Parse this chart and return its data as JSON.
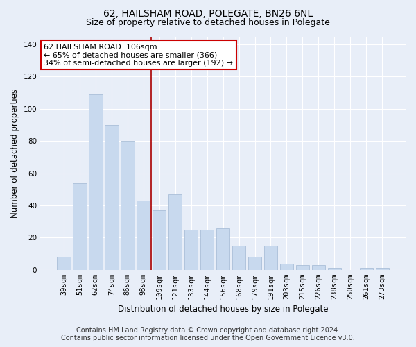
{
  "title": "62, HAILSHAM ROAD, POLEGATE, BN26 6NL",
  "subtitle": "Size of property relative to detached houses in Polegate",
  "xlabel": "Distribution of detached houses by size in Polegate",
  "ylabel": "Number of detached properties",
  "categories": [
    "39sqm",
    "51sqm",
    "62sqm",
    "74sqm",
    "86sqm",
    "98sqm",
    "109sqm",
    "121sqm",
    "133sqm",
    "144sqm",
    "156sqm",
    "168sqm",
    "179sqm",
    "191sqm",
    "203sqm",
    "215sqm",
    "226sqm",
    "238sqm",
    "250sqm",
    "261sqm",
    "273sqm"
  ],
  "values": [
    8,
    54,
    109,
    90,
    80,
    43,
    37,
    47,
    25,
    25,
    26,
    15,
    8,
    15,
    4,
    3,
    3,
    1,
    0,
    1,
    1
  ],
  "bar_color": "#c8d9ee",
  "bar_edge_color": "#aabfd8",
  "vline_x_pos": 5.5,
  "vline_color": "#aa0000",
  "annotation_text": "62 HAILSHAM ROAD: 106sqm\n← 65% of detached houses are smaller (366)\n34% of semi-detached houses are larger (192) →",
  "annotation_box_color": "#ffffff",
  "annotation_box_edge": "#cc0000",
  "ylim": [
    0,
    145
  ],
  "yticks": [
    0,
    20,
    40,
    60,
    80,
    100,
    120,
    140
  ],
  "footer_line1": "Contains HM Land Registry data © Crown copyright and database right 2024.",
  "footer_line2": "Contains public sector information licensed under the Open Government Licence v3.0.",
  "background_color": "#e8eef8",
  "plot_background": "#e8eef8",
  "title_fontsize": 10,
  "subtitle_fontsize": 9,
  "axis_label_fontsize": 8.5,
  "tick_fontsize": 7.5,
  "annotation_fontsize": 8,
  "footer_fontsize": 7
}
